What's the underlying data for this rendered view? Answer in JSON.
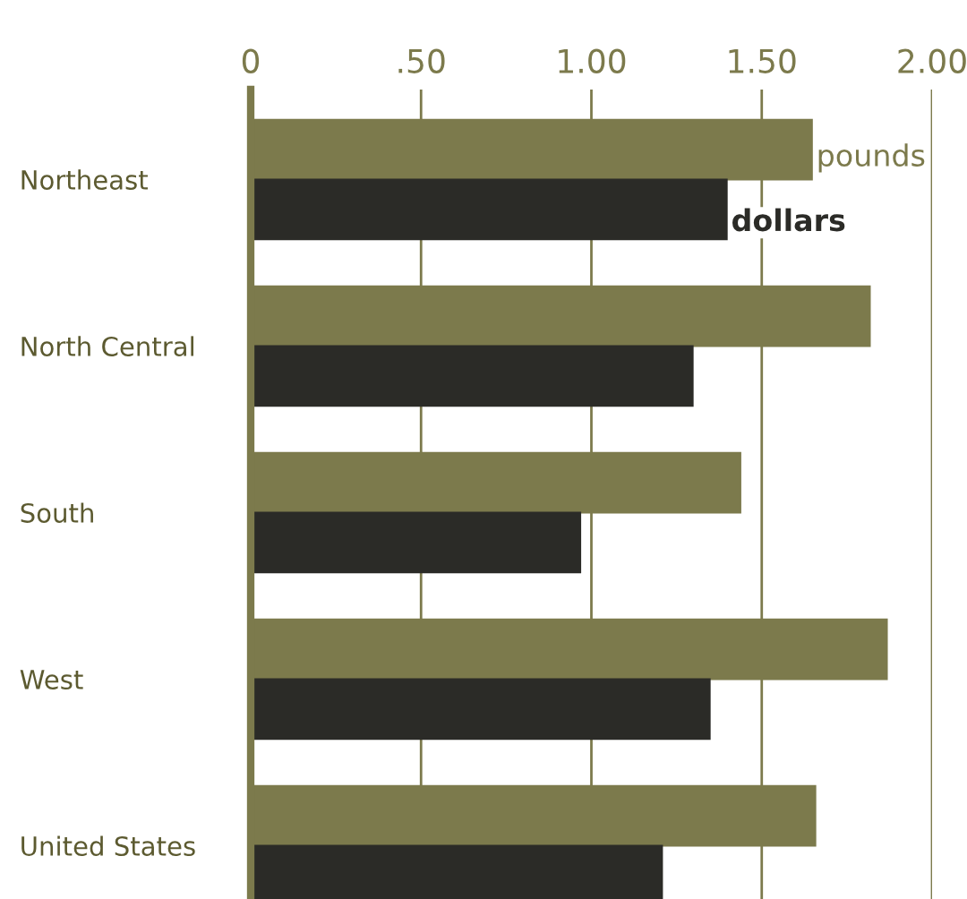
{
  "chart_data": {
    "type": "bar",
    "orientation": "horizontal",
    "categories": [
      "Northeast",
      "North Central",
      "South",
      "West",
      "United States"
    ],
    "series": [
      {
        "name": "pounds",
        "color": "#7c7a4c",
        "values": [
          1.65,
          1.82,
          1.44,
          1.87,
          1.66
        ]
      },
      {
        "name": "dollars",
        "color": "#2b2b27",
        "values": [
          1.4,
          1.3,
          0.97,
          1.35,
          1.21
        ]
      }
    ],
    "xlim": [
      0,
      2.0
    ],
    "xticks": [
      0,
      {
        "value": 0.5,
        "label": ".50"
      },
      {
        "value": 1.0,
        "label": "1.00"
      },
      {
        "value": 1.5,
        "label": "1.50"
      },
      {
        "value": 2.0,
        "label": "2.00"
      }
    ],
    "grid": "x",
    "legend": false
  }
}
